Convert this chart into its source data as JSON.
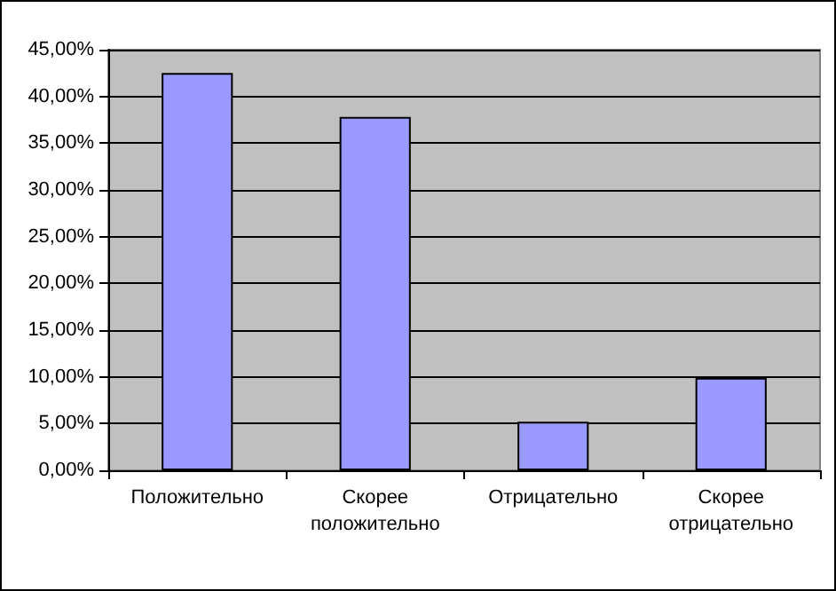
{
  "chart_data": {
    "type": "bar",
    "categories": [
      "Положительно",
      "Скорее положительно",
      "Отрицательно",
      "Скорее отрицательно"
    ],
    "values": [
      42.5,
      37.8,
      5.2,
      9.9
    ],
    "color": "#9999ff",
    "ylim": [
      0,
      45
    ],
    "yticks": [
      {
        "value": 0,
        "label": "0,00%"
      },
      {
        "value": 5,
        "label": "5,00%"
      },
      {
        "value": 10,
        "label": "10,00%"
      },
      {
        "value": 15,
        "label": "15,00%"
      },
      {
        "value": 20,
        "label": "20,00%"
      },
      {
        "value": 25,
        "label": "25,00%"
      },
      {
        "value": 30,
        "label": "30,00%"
      },
      {
        "value": 35,
        "label": "35,00%"
      },
      {
        "value": 40,
        "label": "40,00%"
      },
      {
        "value": 45,
        "label": "45,00%"
      }
    ],
    "grid": "y"
  }
}
